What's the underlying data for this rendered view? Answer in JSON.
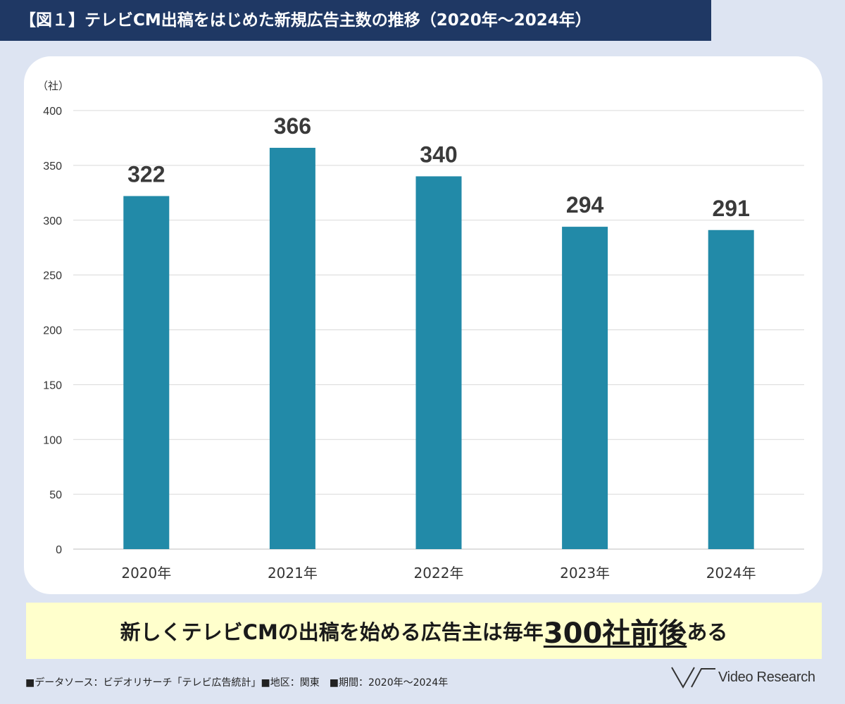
{
  "title": "【図１】テレビCM出稿をはじめた新規広告主数の推移（2020年～2024年）",
  "chart_data": {
    "type": "bar",
    "categories": [
      "2020年",
      "2021年",
      "2022年",
      "2023年",
      "2024年"
    ],
    "values": [
      322,
      366,
      340,
      294,
      291
    ],
    "ylabel": "（社）",
    "ylim": [
      0,
      400
    ],
    "yticks": [
      0,
      50,
      100,
      150,
      200,
      250,
      300,
      350,
      400
    ],
    "grid": true,
    "data_labels": true,
    "bar_color": "#228aa8"
  },
  "summary": {
    "prefix": "新しくテレビCMの出稿を始める広告主は毎年",
    "emphasis": "300社前後",
    "suffix": "ある"
  },
  "source": "■データソース：ビデオリサーチ「テレビ広告統計」■地区：関東　■期間：2020年～2024年",
  "logo": {
    "text": "Video Research"
  },
  "colors": {
    "title_bg": "#1f3864",
    "page_bg": "#dde4f2",
    "summary_bg": "#ffffcc"
  }
}
